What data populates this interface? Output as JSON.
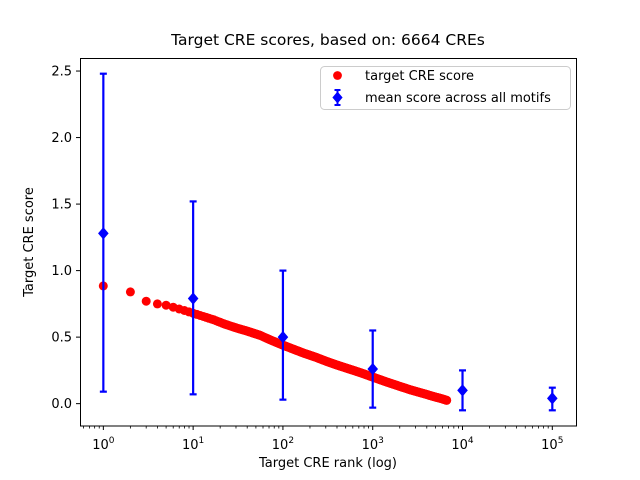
{
  "chart_data": {
    "type": "scatter",
    "title": "Target CRE scores, based on: 6664 CREs",
    "xlabel": "Target CRE rank (log)",
    "ylabel": "Target CRE score",
    "x_scale": "log",
    "n_cres": 6664,
    "xlim_log10": [
      -0.26,
      5.275
    ],
    "ylim": [
      -0.168,
      2.598
    ],
    "yticks": [
      0.0,
      0.5,
      1.0,
      1.5,
      2.0,
      2.5
    ],
    "xtick_exponents": [
      0,
      1,
      2,
      3,
      4,
      5
    ],
    "grid": false,
    "colors": {
      "target": "#ff0000",
      "mean": "#0000ff",
      "legend_border": "#cccccc",
      "axes": "#000000"
    },
    "series": [
      {
        "name": "target CRE score",
        "color": "#ff0000",
        "marker": "circle",
        "n_points": 6664,
        "curve_anchors": [
          [
            1,
            0.885
          ],
          [
            2,
            0.84
          ],
          [
            3,
            0.77
          ],
          [
            4,
            0.75
          ],
          [
            5,
            0.74
          ],
          [
            6,
            0.725
          ],
          [
            8,
            0.7
          ],
          [
            10,
            0.68
          ],
          [
            13,
            0.655
          ],
          [
            17,
            0.63
          ],
          [
            22,
            0.6
          ],
          [
            30,
            0.57
          ],
          [
            40,
            0.545
          ],
          [
            55,
            0.515
          ],
          [
            75,
            0.475
          ],
          [
            100,
            0.44
          ],
          [
            130,
            0.41
          ],
          [
            170,
            0.38
          ],
          [
            230,
            0.35
          ],
          [
            300,
            0.32
          ],
          [
            400,
            0.29
          ],
          [
            550,
            0.26
          ],
          [
            750,
            0.23
          ],
          [
            1000,
            0.2
          ],
          [
            1400,
            0.165
          ],
          [
            1900,
            0.135
          ],
          [
            2600,
            0.105
          ],
          [
            3500,
            0.08
          ],
          [
            4700,
            0.055
          ],
          [
            6000,
            0.035
          ],
          [
            6664,
            0.025
          ]
        ]
      },
      {
        "name": "mean score across all motifs",
        "color": "#0000ff",
        "marker": "diamond",
        "points": [
          {
            "rank": 1,
            "mean": 1.28,
            "lo": 0.09,
            "hi": 2.48
          },
          {
            "rank": 10,
            "mean": 0.79,
            "lo": 0.07,
            "hi": 1.52
          },
          {
            "rank": 100,
            "mean": 0.5,
            "lo": 0.03,
            "hi": 1.0
          },
          {
            "rank": 1000,
            "mean": 0.26,
            "lo": -0.03,
            "hi": 0.55
          },
          {
            "rank": 10000,
            "mean": 0.1,
            "lo": -0.05,
            "hi": 0.25
          },
          {
            "rank": 100000,
            "mean": 0.04,
            "lo": -0.05,
            "hi": 0.12
          }
        ]
      }
    ],
    "legend": {
      "position": "upper right"
    }
  }
}
